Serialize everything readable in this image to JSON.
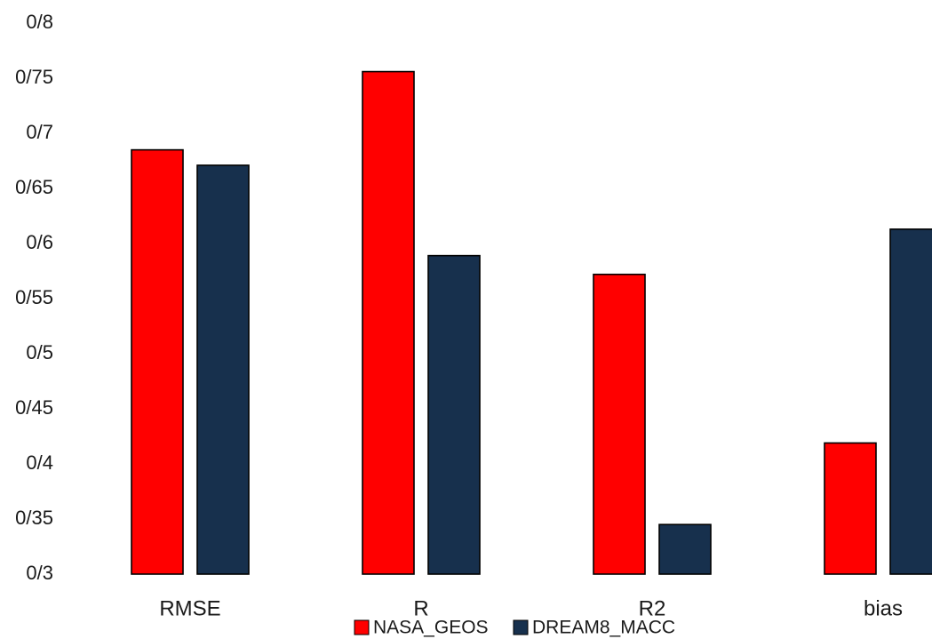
{
  "chart_data": {
    "type": "bar",
    "categories": [
      "RMSE",
      "R",
      "R2",
      "bias"
    ],
    "series": [
      {
        "name": "NASA_GEOS",
        "color": "#ff0000",
        "values": [
          0.685,
          0.756,
          0.572,
          0.419
        ]
      },
      {
        "name": "DREAM8_MACC",
        "color": "#17304d",
        "values": [
          0.671,
          0.589,
          0.345,
          0.613
        ]
      }
    ],
    "ylim": [
      0.3,
      0.8
    ],
    "yticks": [
      {
        "value": 0.8,
        "label": "0/8"
      },
      {
        "value": 0.75,
        "label": "0/75"
      },
      {
        "value": 0.7,
        "label": "0/7"
      },
      {
        "value": 0.65,
        "label": "0/65"
      },
      {
        "value": 0.6,
        "label": "0/6"
      },
      {
        "value": 0.55,
        "label": "0/55"
      },
      {
        "value": 0.5,
        "label": "0/5"
      },
      {
        "value": 0.45,
        "label": "0/45"
      },
      {
        "value": 0.4,
        "label": "0/4"
      },
      {
        "value": 0.35,
        "label": "0/35"
      },
      {
        "value": 0.3,
        "label": "0/3"
      }
    ],
    "grid": false,
    "legend_position": "bottom-center",
    "title": "",
    "xlabel": "",
    "ylabel": ""
  }
}
